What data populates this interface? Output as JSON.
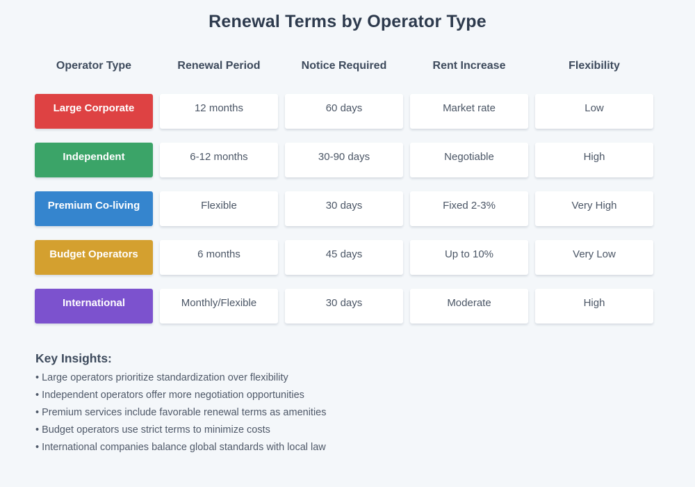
{
  "title": "Renewal Terms by Operator Type",
  "page_background": "#F4F7FA",
  "chart_data": {
    "type": "table",
    "title": "Renewal Terms by Operator Type",
    "columns": [
      "Operator Type",
      "Renewal Period",
      "Notice Required",
      "Rent Increase",
      "Flexibility"
    ],
    "rows": [
      {
        "operator_type": "Large Corporate",
        "badge_color": "#DE4243",
        "renewal_period": "12 months",
        "notice_required": "60 days",
        "rent_increase": "Market rate",
        "flexibility": "Low"
      },
      {
        "operator_type": "Independent",
        "badge_color": "#3BA468",
        "renewal_period": "6-12 months",
        "notice_required": "30-90 days",
        "rent_increase": "Negotiable",
        "flexibility": "High"
      },
      {
        "operator_type": "Premium Co-living",
        "badge_color": "#3585CE",
        "renewal_period": "Flexible",
        "notice_required": "30 days",
        "rent_increase": "Fixed 2-3%",
        "flexibility": "Very High"
      },
      {
        "operator_type": "Budget Operators",
        "badge_color": "#D4A02F",
        "renewal_period": "6 months",
        "notice_required": "45 days",
        "rent_increase": "Up to 10%",
        "flexibility": "Very Low"
      },
      {
        "operator_type": "International",
        "badge_color": "#7C52CE",
        "renewal_period": "Monthly/Flexible",
        "notice_required": "30 days",
        "rent_increase": "Moderate",
        "flexibility": "High"
      }
    ]
  },
  "insights": {
    "heading": "Key Insights:",
    "items": [
      "• Large operators prioritize standardization over flexibility",
      "• Independent operators offer more negotiation opportunities",
      "• Premium services include favorable renewal terms as amenities",
      "• Budget operators use strict terms to minimize costs",
      "• International companies balance global standards with local law"
    ]
  }
}
